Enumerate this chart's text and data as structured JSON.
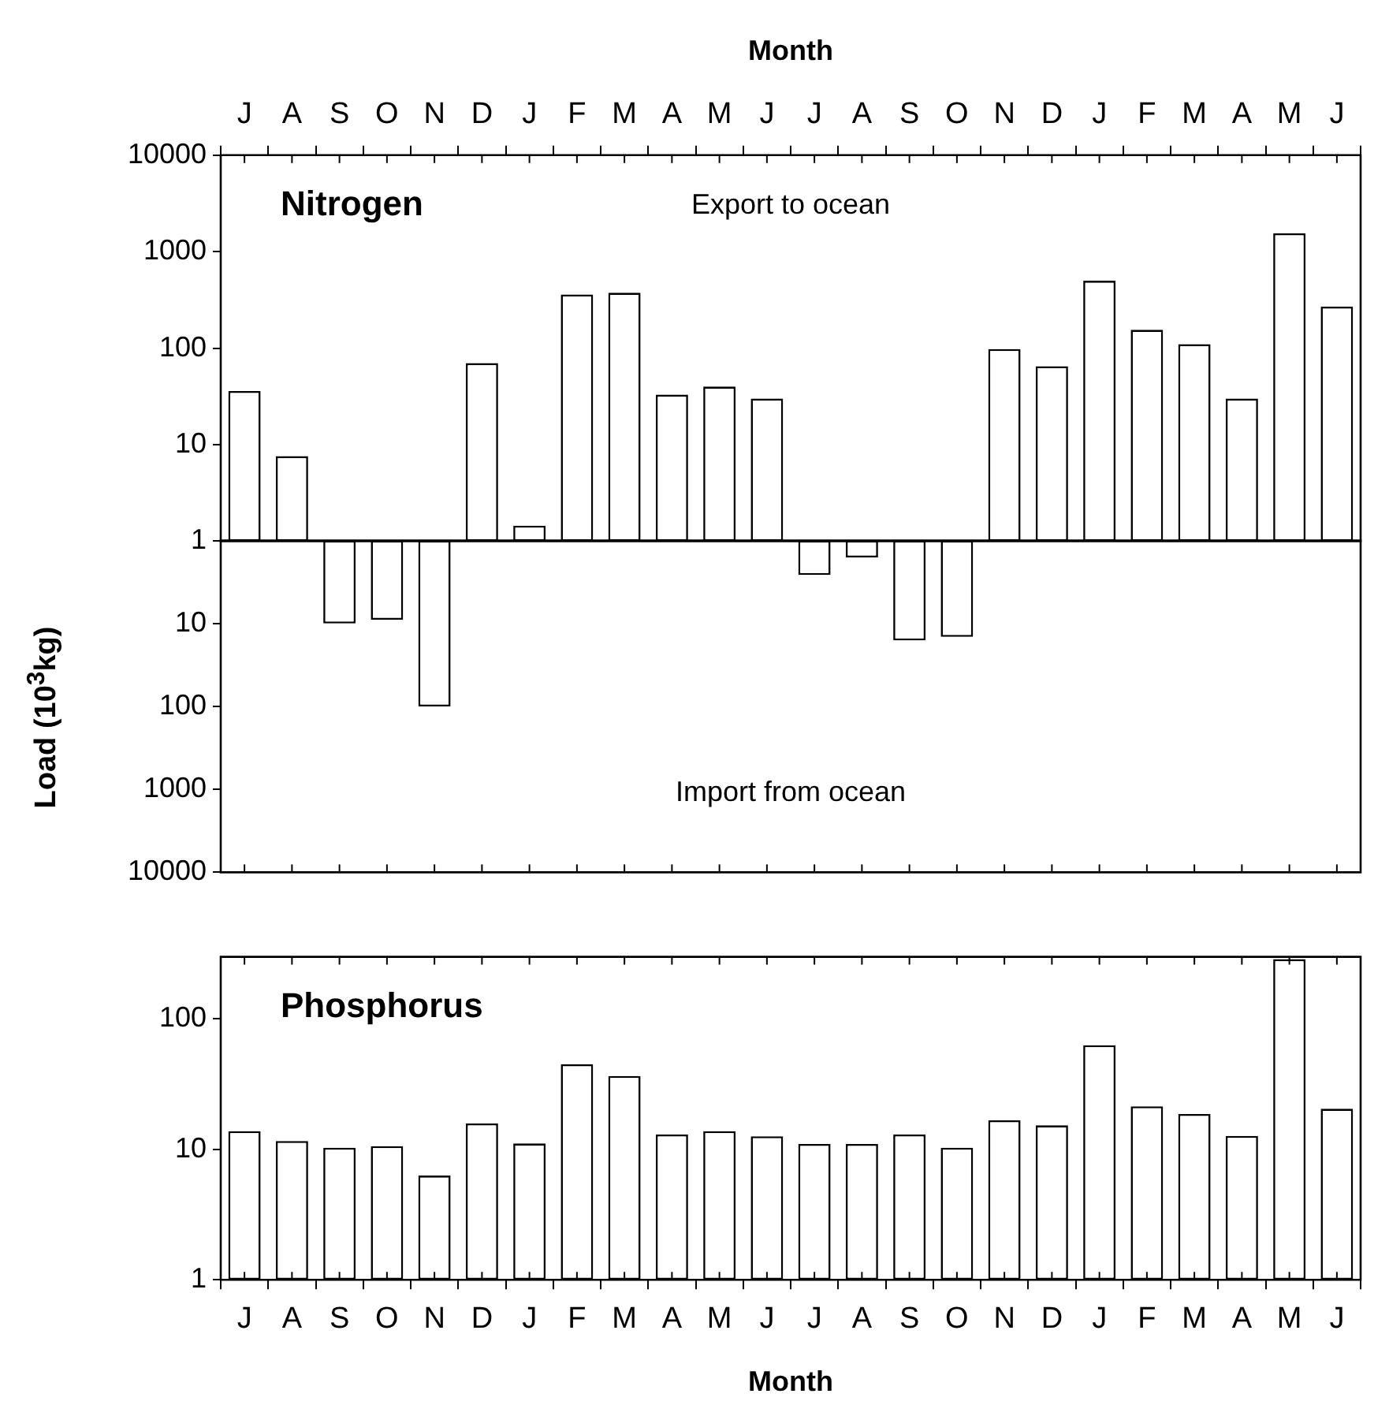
{
  "chart_data": [
    {
      "type": "bar",
      "title": "Nitrogen",
      "xlabel": "Month",
      "ylabel": "Load (10$^{3}$kg)",
      "annotations": [
        "Export to ocean"
      ],
      "categories": [
        "J",
        "A",
        "S",
        "O",
        "N",
        "D",
        "J",
        "F",
        "M",
        "A",
        "M",
        "J",
        "J",
        "A",
        "S",
        "O",
        "N",
        "D",
        "J",
        "F",
        "M",
        "A",
        "M",
        "J"
      ],
      "values": [
        36,
        7.6,
        null,
        null,
        null,
        70,
        1.45,
        360,
        375,
        33,
        40,
        30,
        null,
        null,
        null,
        null,
        98,
        65,
        500,
        155,
        110,
        30,
        1550,
        270
      ],
      "color": "#ffffff",
      "log": "y",
      "ylim": [
        1,
        10000
      ],
      "yticks": [
        1,
        10,
        100,
        1000,
        10000
      ],
      "grid": false
    },
    {
      "type": "bar",
      "annotations": [
        "Import from ocean"
      ],
      "tick_labels": "y",
      "categories": [
        null,
        null,
        null,
        null,
        null,
        null,
        null,
        null,
        null,
        null,
        null,
        null,
        null,
        null,
        null,
        null,
        null,
        null,
        null,
        null,
        null,
        null,
        null,
        null
      ],
      "values": [
        null,
        null,
        10,
        9,
        100,
        null,
        null,
        null,
        null,
        null,
        null,
        null,
        2.6,
        1.6,
        16,
        14.5,
        null,
        null,
        null,
        null,
        null,
        null,
        null,
        null
      ],
      "color": "#ffffff",
      "log": "y",
      "ylim": [
        10000,
        1
      ],
      "yticks": [
        {
          "value": 1,
          "label": null
        },
        10,
        100,
        1000,
        10000
      ],
      "grid": false
    },
    {
      "type": "bar",
      "title": "Phosphorus",
      "xlabel": "Month",
      "categories": [
        "J",
        "A",
        "S",
        "O",
        "N",
        "D",
        "J",
        "F",
        "M",
        "A",
        "M",
        "J",
        "J",
        "A",
        "S",
        "O",
        "N",
        "D",
        "J",
        "F",
        "M",
        "A",
        "M",
        "J"
      ],
      "values": [
        13.8,
        11.6,
        10.3,
        10.6,
        6.3,
        15.8,
        11.1,
        45,
        36.6,
        13,
        13.8,
        12.6,
        11,
        11,
        13,
        10.3,
        16.7,
        15.3,
        63,
        21.4,
        18.7,
        12.7,
        288,
        20.5
      ],
      "color": "#ffffff",
      "log": "y",
      "ylim": [
        1,
        300
      ],
      "yticks": [
        1,
        10,
        100
      ],
      "grid": false
    }
  ]
}
